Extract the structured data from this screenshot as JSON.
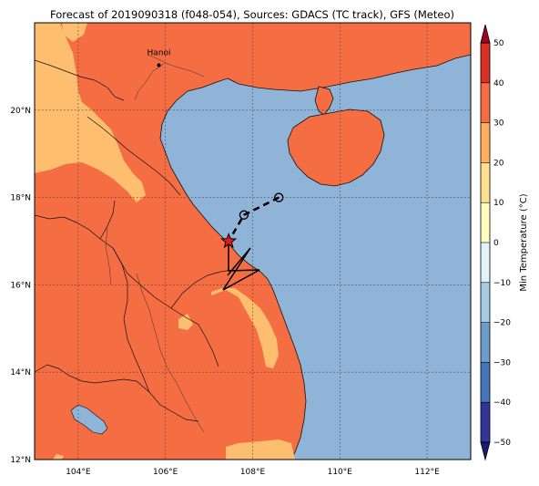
{
  "title": "Forecast of 2019090318 (f048-054), Sources: GDACS (TC track), GFS (Meteo)",
  "map": {
    "lon_range": [
      103,
      113
    ],
    "lat_range": [
      12,
      22
    ],
    "lon_ticks": [
      104,
      106,
      108,
      110,
      112
    ],
    "lat_ticks": [
      12,
      14,
      16,
      18,
      20
    ],
    "lon_tick_labels": [
      "104°E",
      "106°E",
      "108°E",
      "110°E",
      "112°E"
    ],
    "lat_tick_labels": [
      "12°N",
      "14°N",
      "16°N",
      "18°N",
      "20°N"
    ],
    "gridlines": "dotted",
    "colors": {
      "sea": "#8fb4d8",
      "land_warm": "#f46d43",
      "land_mild": "#fdbe6f",
      "coast": "#000000"
    }
  },
  "city": {
    "name": "Hanoi",
    "lon": 105.85,
    "lat": 21.03
  },
  "tc_track": [
    {
      "lon": 108.6,
      "lat": 18.0,
      "marker": "circle"
    },
    {
      "lon": 107.8,
      "lat": 17.6,
      "marker": "circle"
    },
    {
      "lon": 107.45,
      "lat": 17.0,
      "marker": "star"
    }
  ],
  "colorbar": {
    "label": "Min Temperature (°C)",
    "ticks": [
      -50,
      -40,
      -30,
      -20,
      -10,
      0,
      10,
      20,
      30,
      40,
      50
    ],
    "tick_labels": [
      "−50",
      "−40",
      "−30",
      "−20",
      "−10",
      "0",
      "10",
      "20",
      "30",
      "40",
      "50"
    ],
    "bands": [
      {
        "from": -50,
        "to": -40,
        "color": "#313695"
      },
      {
        "from": -40,
        "to": -30,
        "color": "#4575b4"
      },
      {
        "from": -30,
        "to": -20,
        "color": "#6d9cc8"
      },
      {
        "from": -20,
        "to": -10,
        "color": "#a6cce3"
      },
      {
        "from": -10,
        "to": 0,
        "color": "#e0f3f8"
      },
      {
        "from": 0,
        "to": 10,
        "color": "#ffffbf"
      },
      {
        "from": 10,
        "to": 20,
        "color": "#fee090"
      },
      {
        "from": 20,
        "to": 30,
        "color": "#fdae61"
      },
      {
        "from": 30,
        "to": 40,
        "color": "#f46d43"
      },
      {
        "from": 40,
        "to": 50,
        "color": "#d73027"
      }
    ],
    "extend_low_color": "#1a1a6e",
    "extend_high_color": "#a50026"
  }
}
